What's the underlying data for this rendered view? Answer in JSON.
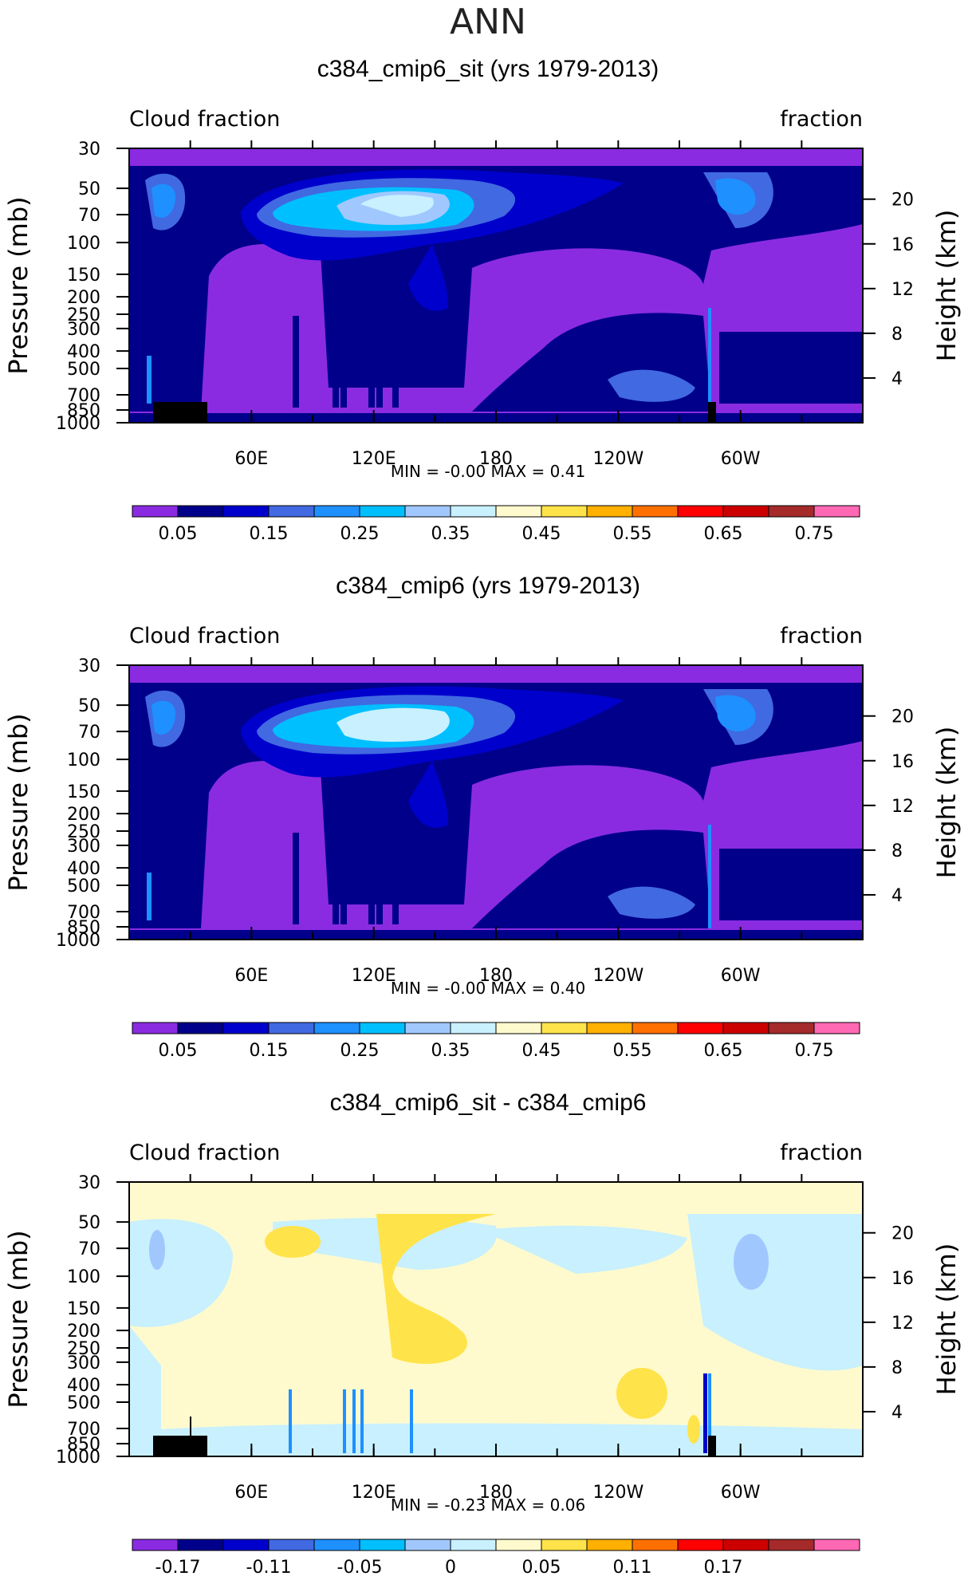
{
  "page_title": "ANN",
  "chart_data": [
    {
      "type": "heatmap",
      "title": "c384_cmip6_sit (yrs 1979-2013)",
      "left_label": "Cloud fraction",
      "right_label": "fraction",
      "ylabel": "Pressure (mb)",
      "ylabel_right": "Height (km)",
      "x_ticks": [
        "60E",
        "120E",
        "180",
        "120W",
        "60W"
      ],
      "x_tick_values": [
        60,
        120,
        180,
        240,
        300
      ],
      "xlim": [
        0,
        360
      ],
      "y_ticks": [
        "30",
        "50",
        "70",
        "100",
        "150",
        "200",
        "250",
        "300",
        "400",
        "500",
        "700",
        "850",
        "1000"
      ],
      "y_tick_values": [
        30,
        50,
        70,
        100,
        150,
        200,
        250,
        300,
        400,
        500,
        700,
        850,
        1000
      ],
      "ylim": [
        1000,
        30
      ],
      "height_ticks": [
        "20",
        "16",
        "12",
        "8",
        "4"
      ],
      "height_tick_values": [
        20,
        16,
        12,
        8,
        4
      ],
      "min_text": "MIN =    -0.00   MAX =    0.41",
      "colorbar_labels": [
        "0.05",
        "0.15",
        "0.25",
        "0.35",
        "0.45",
        "0.55",
        "0.65",
        "0.75"
      ],
      "colorbar_colors": [
        "#8a2be2",
        "#00008b",
        "#0000cd",
        "#4169e1",
        "#1e90ff",
        "#00bfff",
        "#a0c8ff",
        "#c8f0ff",
        "#fffacd",
        "#ffe34a",
        "#ffb000",
        "#ff7000",
        "#ff0000",
        "#cc0000",
        "#a52a2a",
        "#ff69b4"
      ]
    },
    {
      "type": "heatmap",
      "title": "c384_cmip6 (yrs 1979-2013)",
      "left_label": "Cloud fraction",
      "right_label": "fraction",
      "ylabel": "Pressure (mb)",
      "ylabel_right": "Height (km)",
      "x_ticks": [
        "60E",
        "120E",
        "180",
        "120W",
        "60W"
      ],
      "x_tick_values": [
        60,
        120,
        180,
        240,
        300
      ],
      "xlim": [
        0,
        360
      ],
      "y_ticks": [
        "30",
        "50",
        "70",
        "100",
        "150",
        "200",
        "250",
        "300",
        "400",
        "500",
        "700",
        "850",
        "1000"
      ],
      "y_tick_values": [
        30,
        50,
        70,
        100,
        150,
        200,
        250,
        300,
        400,
        500,
        700,
        850,
        1000
      ],
      "ylim": [
        1000,
        30
      ],
      "height_ticks": [
        "20",
        "16",
        "12",
        "8",
        "4"
      ],
      "height_tick_values": [
        20,
        16,
        12,
        8,
        4
      ],
      "min_text": "MIN =    -0.00   MAX =    0.40",
      "colorbar_labels": [
        "0.05",
        "0.15",
        "0.25",
        "0.35",
        "0.45",
        "0.55",
        "0.65",
        "0.75"
      ],
      "colorbar_colors": [
        "#8a2be2",
        "#00008b",
        "#0000cd",
        "#4169e1",
        "#1e90ff",
        "#00bfff",
        "#a0c8ff",
        "#c8f0ff",
        "#fffacd",
        "#ffe34a",
        "#ffb000",
        "#ff7000",
        "#ff0000",
        "#cc0000",
        "#a52a2a",
        "#ff69b4"
      ]
    },
    {
      "type": "heatmap",
      "title": "c384_cmip6_sit - c384_cmip6",
      "left_label": "Cloud fraction",
      "right_label": "fraction",
      "ylabel": "Pressure (mb)",
      "ylabel_right": "Height (km)",
      "x_ticks": [
        "60E",
        "120E",
        "180",
        "120W",
        "60W"
      ],
      "x_tick_values": [
        60,
        120,
        180,
        240,
        300
      ],
      "xlim": [
        0,
        360
      ],
      "y_ticks": [
        "30",
        "50",
        "70",
        "100",
        "150",
        "200",
        "250",
        "300",
        "400",
        "500",
        "700",
        "850",
        "1000"
      ],
      "y_tick_values": [
        30,
        50,
        70,
        100,
        150,
        200,
        250,
        300,
        400,
        500,
        700,
        850,
        1000
      ],
      "ylim": [
        1000,
        30
      ],
      "height_ticks": [
        "20",
        "16",
        "12",
        "8",
        "4"
      ],
      "height_tick_values": [
        20,
        16,
        12,
        8,
        4
      ],
      "min_text": "MIN =    -0.23   MAX =    0.06",
      "colorbar_labels": [
        "-0.17",
        "-0.11",
        "-0.05",
        "0",
        "0.05",
        "0.11",
        "0.17"
      ],
      "colorbar_colors": [
        "#8a2be2",
        "#00008b",
        "#0000cd",
        "#4169e1",
        "#1e90ff",
        "#00bfff",
        "#a0c8ff",
        "#c8f0ff",
        "#fffacd",
        "#ffe34a",
        "#ffb000",
        "#ff7000",
        "#ff0000",
        "#cc0000",
        "#a52a2a",
        "#ff69b4"
      ]
    }
  ]
}
